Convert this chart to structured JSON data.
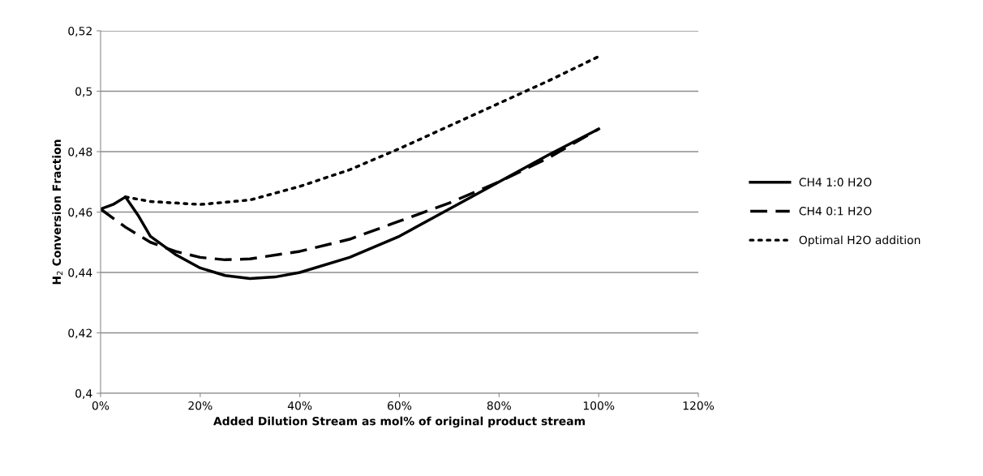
{
  "chart_data": {
    "type": "line",
    "xlabel": "Added Dilution Stream as mol% of original product stream",
    "ylabel": "H$_{2}$ Conversion Fraction",
    "xlim": [
      0,
      120
    ],
    "xticks": [
      {
        "value": 0,
        "label": "0%"
      },
      {
        "value": 20,
        "label": "20%"
      },
      {
        "value": 40,
        "label": "40%"
      },
      {
        "value": 60,
        "label": "60%"
      },
      {
        "value": 80,
        "label": "80%"
      },
      {
        "value": 100,
        "label": "100%"
      },
      {
        "value": 120,
        "label": "120%"
      }
    ],
    "ylim": [
      0.4,
      0.52
    ],
    "yticks": [
      {
        "value": 0.4,
        "label": "0,4"
      },
      {
        "value": 0.42,
        "label": "0,42"
      },
      {
        "value": 0.44,
        "label": "0,44"
      },
      {
        "value": 0.46,
        "label": "0,46"
      },
      {
        "value": 0.48,
        "label": "0,48"
      },
      {
        "value": 0.5,
        "label": "0,5"
      },
      {
        "value": 0.52,
        "label": "0,52"
      }
    ],
    "grid": "y",
    "legend": "right",
    "series": [
      {
        "name": "CH4 1:0 H2O",
        "color": "#000000",
        "line_style": "solid",
        "x": [
          0,
          2.5,
          5,
          7.5,
          10,
          15,
          20,
          25,
          30,
          35,
          40,
          50,
          60,
          70,
          80,
          90,
          100
        ],
        "values": [
          0.461,
          0.4625,
          0.465,
          0.459,
          0.452,
          0.446,
          0.4415,
          0.439,
          0.438,
          0.4385,
          0.44,
          0.445,
          0.452,
          0.461,
          0.47,
          0.479,
          0.4875
        ]
      },
      {
        "name": "CH4 0:1 H2O",
        "color": "#000000",
        "line_style": "dashed",
        "x": [
          0,
          5,
          10,
          15,
          20,
          25,
          30,
          40,
          50,
          60,
          70,
          80,
          90,
          100
        ],
        "values": [
          0.461,
          0.455,
          0.45,
          0.447,
          0.445,
          0.4442,
          0.4445,
          0.447,
          0.451,
          0.457,
          0.463,
          0.47,
          0.478,
          0.4875
        ]
      },
      {
        "name": "Optimal H2O addition",
        "color": "#000000",
        "line_style": "dotted",
        "x": [
          5,
          10,
          20,
          30,
          40,
          50,
          60,
          70,
          80,
          90,
          100
        ],
        "values": [
          0.465,
          0.4635,
          0.4625,
          0.464,
          0.4685,
          0.474,
          0.481,
          0.4885,
          0.496,
          0.5035,
          0.5115
        ]
      }
    ]
  }
}
